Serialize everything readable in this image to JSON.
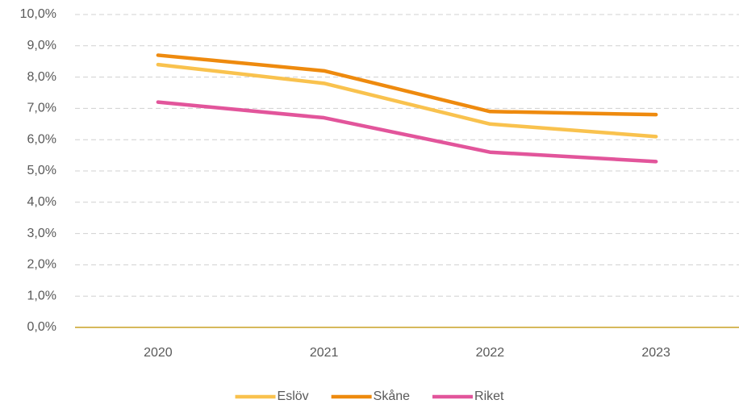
{
  "chart_data": {
    "type": "line",
    "categories": [
      "2020",
      "2021",
      "2022",
      "2023"
    ],
    "series": [
      {
        "name": "Eslöv",
        "color": "#f9c24e",
        "values": [
          8.4,
          7.8,
          6.5,
          6.1
        ]
      },
      {
        "name": "Skåne",
        "color": "#ee8a0e",
        "values": [
          8.7,
          8.2,
          6.9,
          6.8
        ]
      },
      {
        "name": "Riket",
        "color": "#e2559b",
        "values": [
          7.2,
          6.7,
          5.6,
          5.3
        ]
      }
    ],
    "ylim": [
      0,
      10
    ],
    "yticks": [
      {
        "value": 0,
        "label": "0,0%"
      },
      {
        "value": 1,
        "label": "1,0%"
      },
      {
        "value": 2,
        "label": "2,0%"
      },
      {
        "value": 3,
        "label": "3,0%"
      },
      {
        "value": 4,
        "label": "4,0%"
      },
      {
        "value": 5,
        "label": "5,0%"
      },
      {
        "value": 6,
        "label": "6,0%"
      },
      {
        "value": 7,
        "label": "7,0%"
      },
      {
        "value": 8,
        "label": "8,0%"
      },
      {
        "value": 9,
        "label": "9,0%"
      },
      {
        "value": 10,
        "label": "10,0%"
      }
    ],
    "grid": true,
    "legend": "bottom"
  }
}
